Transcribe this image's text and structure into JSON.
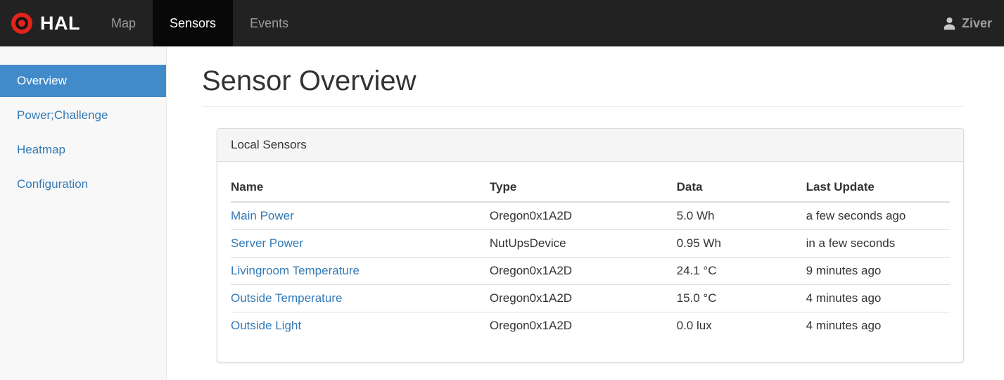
{
  "navbar": {
    "brand": "HAL",
    "items": [
      {
        "label": "Map",
        "active": false
      },
      {
        "label": "Sensors",
        "active": true
      },
      {
        "label": "Events",
        "active": false
      }
    ],
    "user": "Ziver",
    "icons": {
      "brand": "bullseye-icon",
      "user": "person-icon"
    }
  },
  "sidebar": {
    "items": [
      {
        "label": "Overview",
        "active": true
      },
      {
        "label": "Power;Challenge",
        "active": false
      },
      {
        "label": "Heatmap",
        "active": false
      },
      {
        "label": "Configuration",
        "active": false
      }
    ]
  },
  "main": {
    "title": "Sensor Overview",
    "panel": {
      "title": "Local Sensors",
      "table": {
        "columns": [
          "Name",
          "Type",
          "Data",
          "Last Update"
        ],
        "rows": [
          {
            "name": "Main Power",
            "type": "Oregon0x1A2D",
            "data": "5.0 Wh",
            "last_update": "a few seconds ago"
          },
          {
            "name": "Server Power",
            "type": "NutUpsDevice",
            "data": "0.95 Wh",
            "last_update": "in a few seconds"
          },
          {
            "name": "Livingroom Temperature",
            "type": "Oregon0x1A2D",
            "data": "24.1 °C",
            "last_update": "9 minutes ago"
          },
          {
            "name": "Outside Temperature",
            "type": "Oregon0x1A2D",
            "data": "15.0 °C",
            "last_update": "4 minutes ago"
          },
          {
            "name": "Outside Light",
            "type": "Oregon0x1A2D",
            "data": "0.0 lux",
            "last_update": "4 minutes ago"
          }
        ]
      }
    }
  },
  "colors": {
    "navbar_bg": "#222222",
    "navbar_active_bg": "#080808",
    "brand_red": "#e2231a",
    "sidebar_bg": "#f8f8f8",
    "active_item_bg": "#428bca",
    "link_blue": "#337ab7",
    "panel_border": "#dddddd",
    "panel_heading_bg": "#f5f5f5"
  }
}
